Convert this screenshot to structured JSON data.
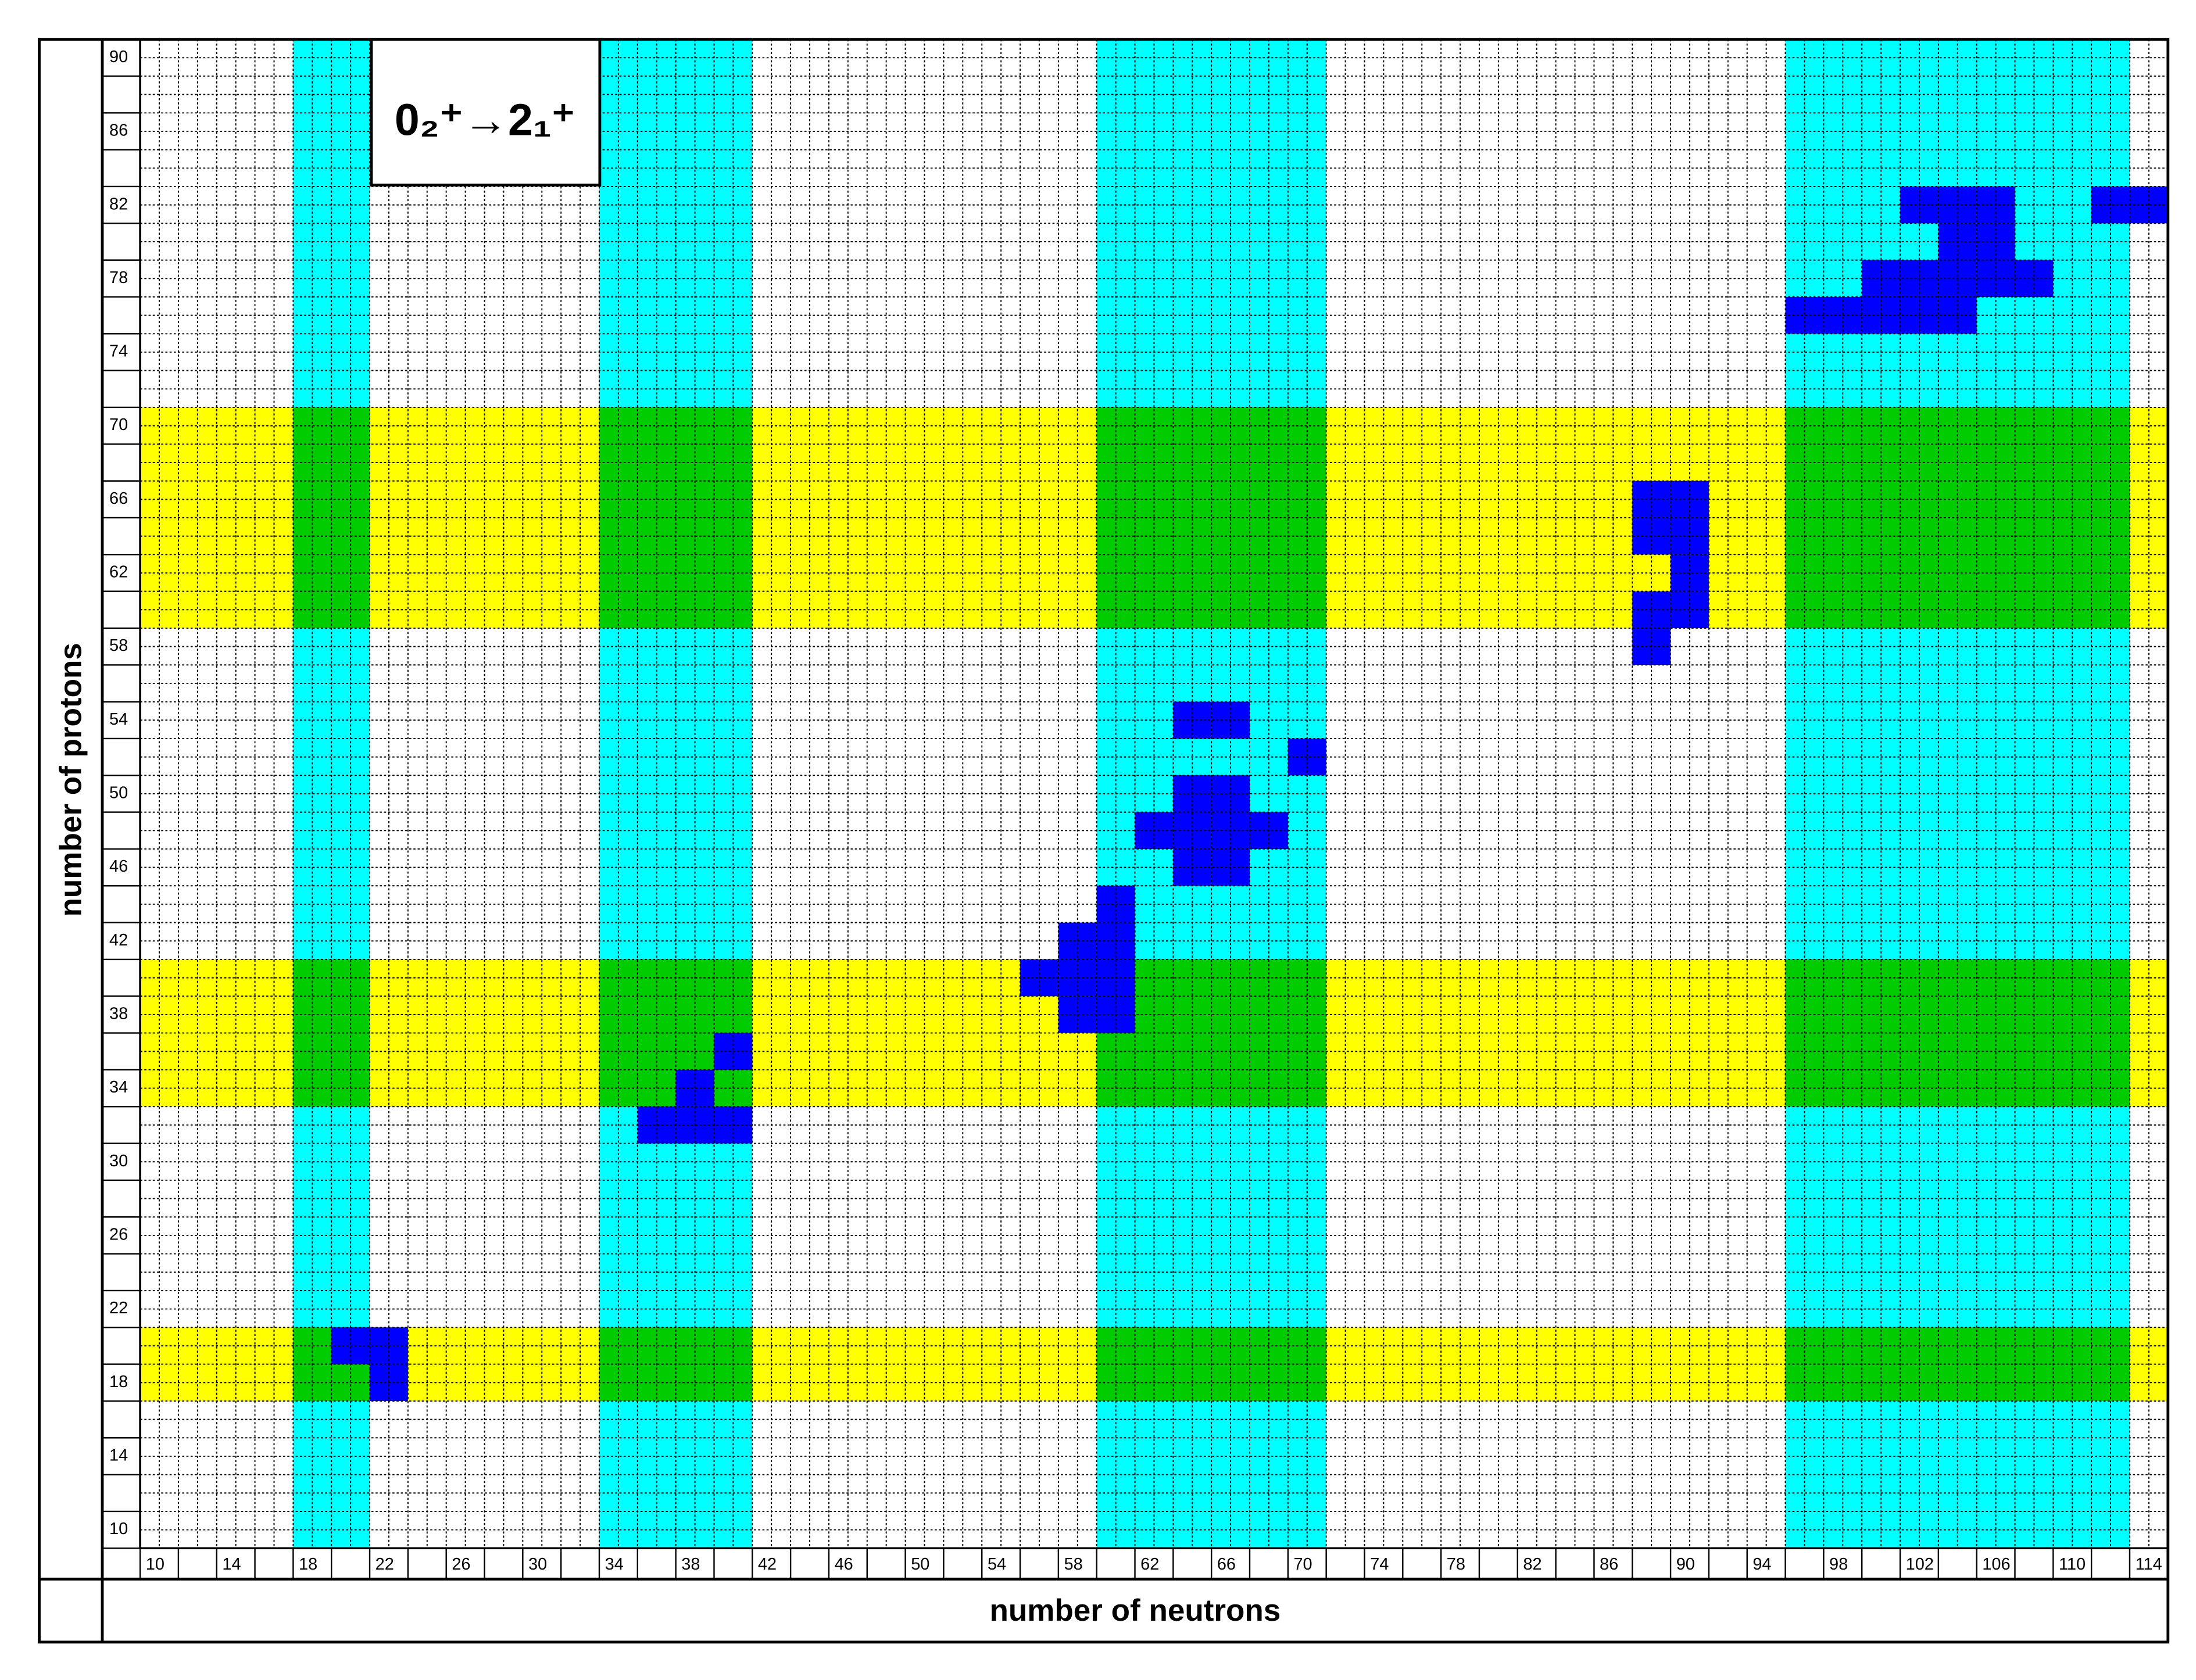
{
  "chart_data": {
    "type": "nuclide-grid",
    "annotation": "0₂⁺→2₁⁺",
    "x_label": "number of neutrons",
    "y_label": "number of protons",
    "xlim": [
      10,
      116
    ],
    "ylim": [
      10,
      92
    ],
    "xticks": [
      10,
      14,
      18,
      22,
      26,
      30,
      34,
      38,
      42,
      46,
      50,
      54,
      58,
      62,
      66,
      70,
      74,
      78,
      82,
      86,
      90,
      94,
      98,
      102,
      106,
      110,
      114
    ],
    "yticks": [
      10,
      14,
      18,
      22,
      26,
      30,
      34,
      38,
      42,
      46,
      50,
      54,
      58,
      62,
      66,
      70,
      74,
      78,
      82,
      86,
      90
    ],
    "z_bands": [
      [
        18,
        22
      ],
      [
        34,
        42
      ],
      [
        60,
        72
      ]
    ],
    "n_bands": [
      [
        18,
        22
      ],
      [
        34,
        42
      ],
      [
        60,
        72
      ],
      [
        96,
        114
      ]
    ],
    "z_band_color": "#ffff00",
    "n_band_color": "#00ffff",
    "overlap_color": "#00cc00",
    "color": "#0000ff",
    "x": [
      20,
      22,
      22,
      36,
      38,
      40,
      38,
      40,
      56,
      58,
      60,
      58,
      60,
      58,
      60,
      60,
      64,
      66,
      64,
      66,
      62,
      64,
      68,
      64,
      66,
      70,
      64,
      66,
      88,
      88,
      90,
      88,
      90,
      90,
      88,
      90,
      96,
      98,
      100,
      102,
      104,
      100,
      102,
      104,
      106,
      108,
      104,
      106,
      102,
      104,
      106,
      112,
      114
    ],
    "y": [
      20,
      20,
      18,
      32,
      32,
      32,
      34,
      36,
      40,
      40,
      40,
      38,
      38,
      42,
      42,
      44,
      46,
      46,
      48,
      48,
      48,
      50,
      48,
      50,
      50,
      52,
      54,
      54,
      58,
      60,
      60,
      64,
      64,
      62,
      66,
      66,
      76,
      76,
      76,
      76,
      76,
      78,
      78,
      78,
      78,
      78,
      80,
      80,
      82,
      82,
      82,
      82,
      82
    ]
  }
}
